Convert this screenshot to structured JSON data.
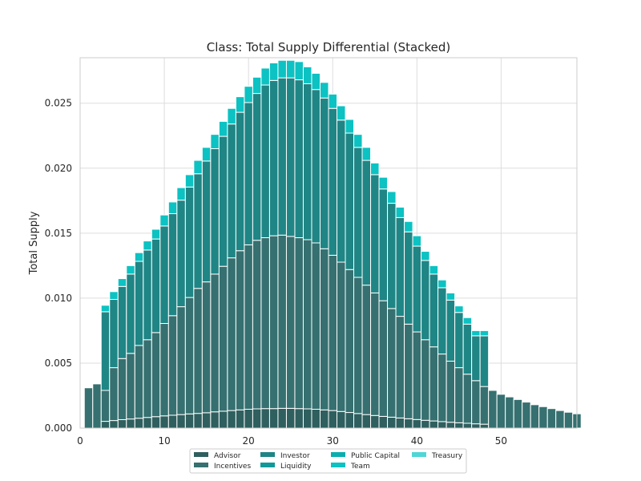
{
  "chart_data": {
    "type": "bar",
    "stacked": true,
    "title": "Class: Total Supply Differential (Stacked)",
    "xlabel": "",
    "ylabel": "Total Supply",
    "xlim": [
      0,
      59
    ],
    "ylim": [
      0,
      0.0285
    ],
    "x_ticks": [
      0,
      10,
      20,
      30,
      40,
      50
    ],
    "y_ticks": [
      0.0,
      0.005,
      0.01,
      0.015,
      0.02,
      0.025
    ],
    "grid": true,
    "legend_position": "bottom-center",
    "x": [
      1,
      2,
      3,
      4,
      5,
      6,
      7,
      8,
      9,
      10,
      11,
      12,
      13,
      14,
      15,
      16,
      17,
      18,
      19,
      20,
      21,
      22,
      23,
      24,
      25,
      26,
      27,
      28,
      29,
      30,
      31,
      32,
      33,
      34,
      35,
      36,
      37,
      38,
      39,
      40,
      41,
      42,
      43,
      44,
      45,
      46,
      47,
      48,
      49,
      50,
      51,
      52,
      53,
      54,
      55,
      56,
      57,
      58,
      59
    ],
    "series": [
      {
        "name": "Advisor",
        "color": "#2f5f5f",
        "values": [
          0,
          0,
          0.00052,
          0.00058,
          0.00065,
          0.0007,
          0.00076,
          0.00082,
          0.00088,
          0.00094,
          0.00099,
          0.00104,
          0.00109,
          0.00113,
          0.00118,
          0.00125,
          0.0013,
          0.00135,
          0.0014,
          0.00145,
          0.00148,
          0.0015,
          0.0015,
          0.00152,
          0.00152,
          0.0015,
          0.00148,
          0.00145,
          0.0014,
          0.00135,
          0.00128,
          0.0012,
          0.00112,
          0.00104,
          0.00097,
          0.0009,
          0.00084,
          0.00078,
          0.00072,
          0.00066,
          0.0006,
          0.00055,
          0.0005,
          0.00045,
          0.00041,
          0.00037,
          0.00033,
          0.0003,
          0,
          0,
          0,
          0,
          0,
          0,
          0,
          0,
          0,
          0,
          0
        ]
      },
      {
        "name": "Incentives",
        "color": "#367070",
        "values": [
          0.0031,
          0.0034,
          0.00238,
          0.00407,
          0.0047,
          0.00505,
          0.0056,
          0.00598,
          0.00647,
          0.00711,
          0.00766,
          0.0083,
          0.00896,
          0.00962,
          0.01007,
          0.0106,
          0.01115,
          0.01175,
          0.01225,
          0.01265,
          0.01297,
          0.01315,
          0.0133,
          0.01333,
          0.01323,
          0.01315,
          0.01302,
          0.0128,
          0.0124,
          0.01195,
          0.01149,
          0.011,
          0.01048,
          0.00996,
          0.00943,
          0.0089,
          0.00836,
          0.00782,
          0.00728,
          0.00674,
          0.0062,
          0.0057,
          0.0052,
          0.0047,
          0.00424,
          0.00378,
          0.00332,
          0.0029,
          0.0029,
          0.0026,
          0.0024,
          0.0022,
          0.002,
          0.0018,
          0.00165,
          0.0015,
          0.00135,
          0.00122,
          0.0011
        ]
      },
      {
        "name": "Investor",
        "color": "#1f8585",
        "values": [
          0,
          0,
          0.00605,
          0.00525,
          0.00555,
          0.0061,
          0.00647,
          0.0069,
          0.0072,
          0.0075,
          0.00785,
          0.0082,
          0.0085,
          0.00882,
          0.0093,
          0.00965,
          0.01,
          0.0103,
          0.01065,
          0.01095,
          0.0113,
          0.01175,
          0.01195,
          0.0121,
          0.0122,
          0.01215,
          0.012,
          0.0118,
          0.0116,
          0.0113,
          0.01093,
          0.0105,
          0.01,
          0.0096,
          0.0091,
          0.0086,
          0.0081,
          0.0076,
          0.0071,
          0.0066,
          0.0061,
          0.0056,
          0.0051,
          0.0047,
          0.00425,
          0.00385,
          0.00345,
          0.0039,
          0,
          0,
          0,
          0,
          0,
          0,
          0,
          0,
          0,
          0,
          0
        ]
      },
      {
        "name": "Liquidity",
        "color": "#119999",
        "values": [
          0,
          0,
          0,
          0,
          0,
          0,
          0,
          0,
          0,
          0,
          0,
          0,
          0,
          0,
          0,
          0,
          0,
          0,
          0,
          0,
          0,
          0,
          0,
          0,
          0,
          0,
          0,
          0,
          0,
          0,
          0,
          0,
          0,
          0,
          0,
          0,
          0,
          0,
          0,
          0,
          0,
          0,
          0,
          0,
          0,
          0,
          0,
          0,
          0,
          0,
          0,
          0,
          0,
          0,
          0,
          0,
          0,
          0,
          0
        ]
      },
      {
        "name": "Public Capital",
        "color": "#0aaeae",
        "values": [
          0,
          0,
          0,
          0,
          0,
          0,
          0,
          0,
          0,
          0,
          0,
          0,
          0,
          0,
          0,
          0,
          0,
          0,
          0,
          0,
          0,
          0,
          0,
          0,
          0,
          0,
          0,
          0,
          0,
          0,
          0,
          0,
          0,
          0,
          0,
          0,
          0,
          0,
          0,
          0,
          0,
          0,
          0,
          0,
          0,
          0,
          0,
          0,
          0,
          0,
          0,
          0,
          0,
          0,
          0,
          0,
          0,
          0,
          0
        ]
      },
      {
        "name": "Team",
        "color": "#0cc2c2",
        "values": [
          0,
          0,
          0.0005,
          0.0006,
          0.0006,
          0.00065,
          0.00067,
          0.0007,
          0.00075,
          0.00085,
          0.0009,
          0.00096,
          0.00095,
          0.00103,
          0.00105,
          0.0011,
          0.00115,
          0.0012,
          0.0012,
          0.00125,
          0.00125,
          0.0013,
          0.00135,
          0.00135,
          0.00135,
          0.0014,
          0.0013,
          0.00125,
          0.0012,
          0.0011,
          0.0011,
          0.00105,
          0.001,
          0.001,
          0.0009,
          0.0009,
          0.0009,
          0.0008,
          0.0008,
          0.0008,
          0.0007,
          0.00065,
          0.0006,
          0.00055,
          0.0005,
          0.0005,
          0.0004,
          0.0004,
          0,
          0,
          0,
          0,
          0,
          0,
          0,
          0,
          0,
          0,
          0
        ]
      },
      {
        "name": "Treasury",
        "color": "#4fd6d6",
        "values": [
          0,
          0,
          0,
          0,
          0,
          0,
          0,
          0,
          0,
          0,
          0,
          0,
          0,
          0,
          0,
          0,
          0,
          0,
          0,
          0,
          0,
          0,
          0,
          0,
          0,
          0,
          0,
          0,
          0,
          0,
          0,
          0,
          0,
          0,
          0,
          0,
          0,
          0,
          0,
          0,
          0,
          0,
          0,
          0,
          0,
          0,
          0,
          0,
          0,
          0,
          0,
          0,
          0,
          0,
          0,
          0,
          0,
          0,
          0
        ]
      }
    ],
    "legend_order": [
      "Advisor",
      "Incentives",
      "Investor",
      "Liquidity",
      "Public Capital",
      "Team",
      "Treasury"
    ]
  }
}
